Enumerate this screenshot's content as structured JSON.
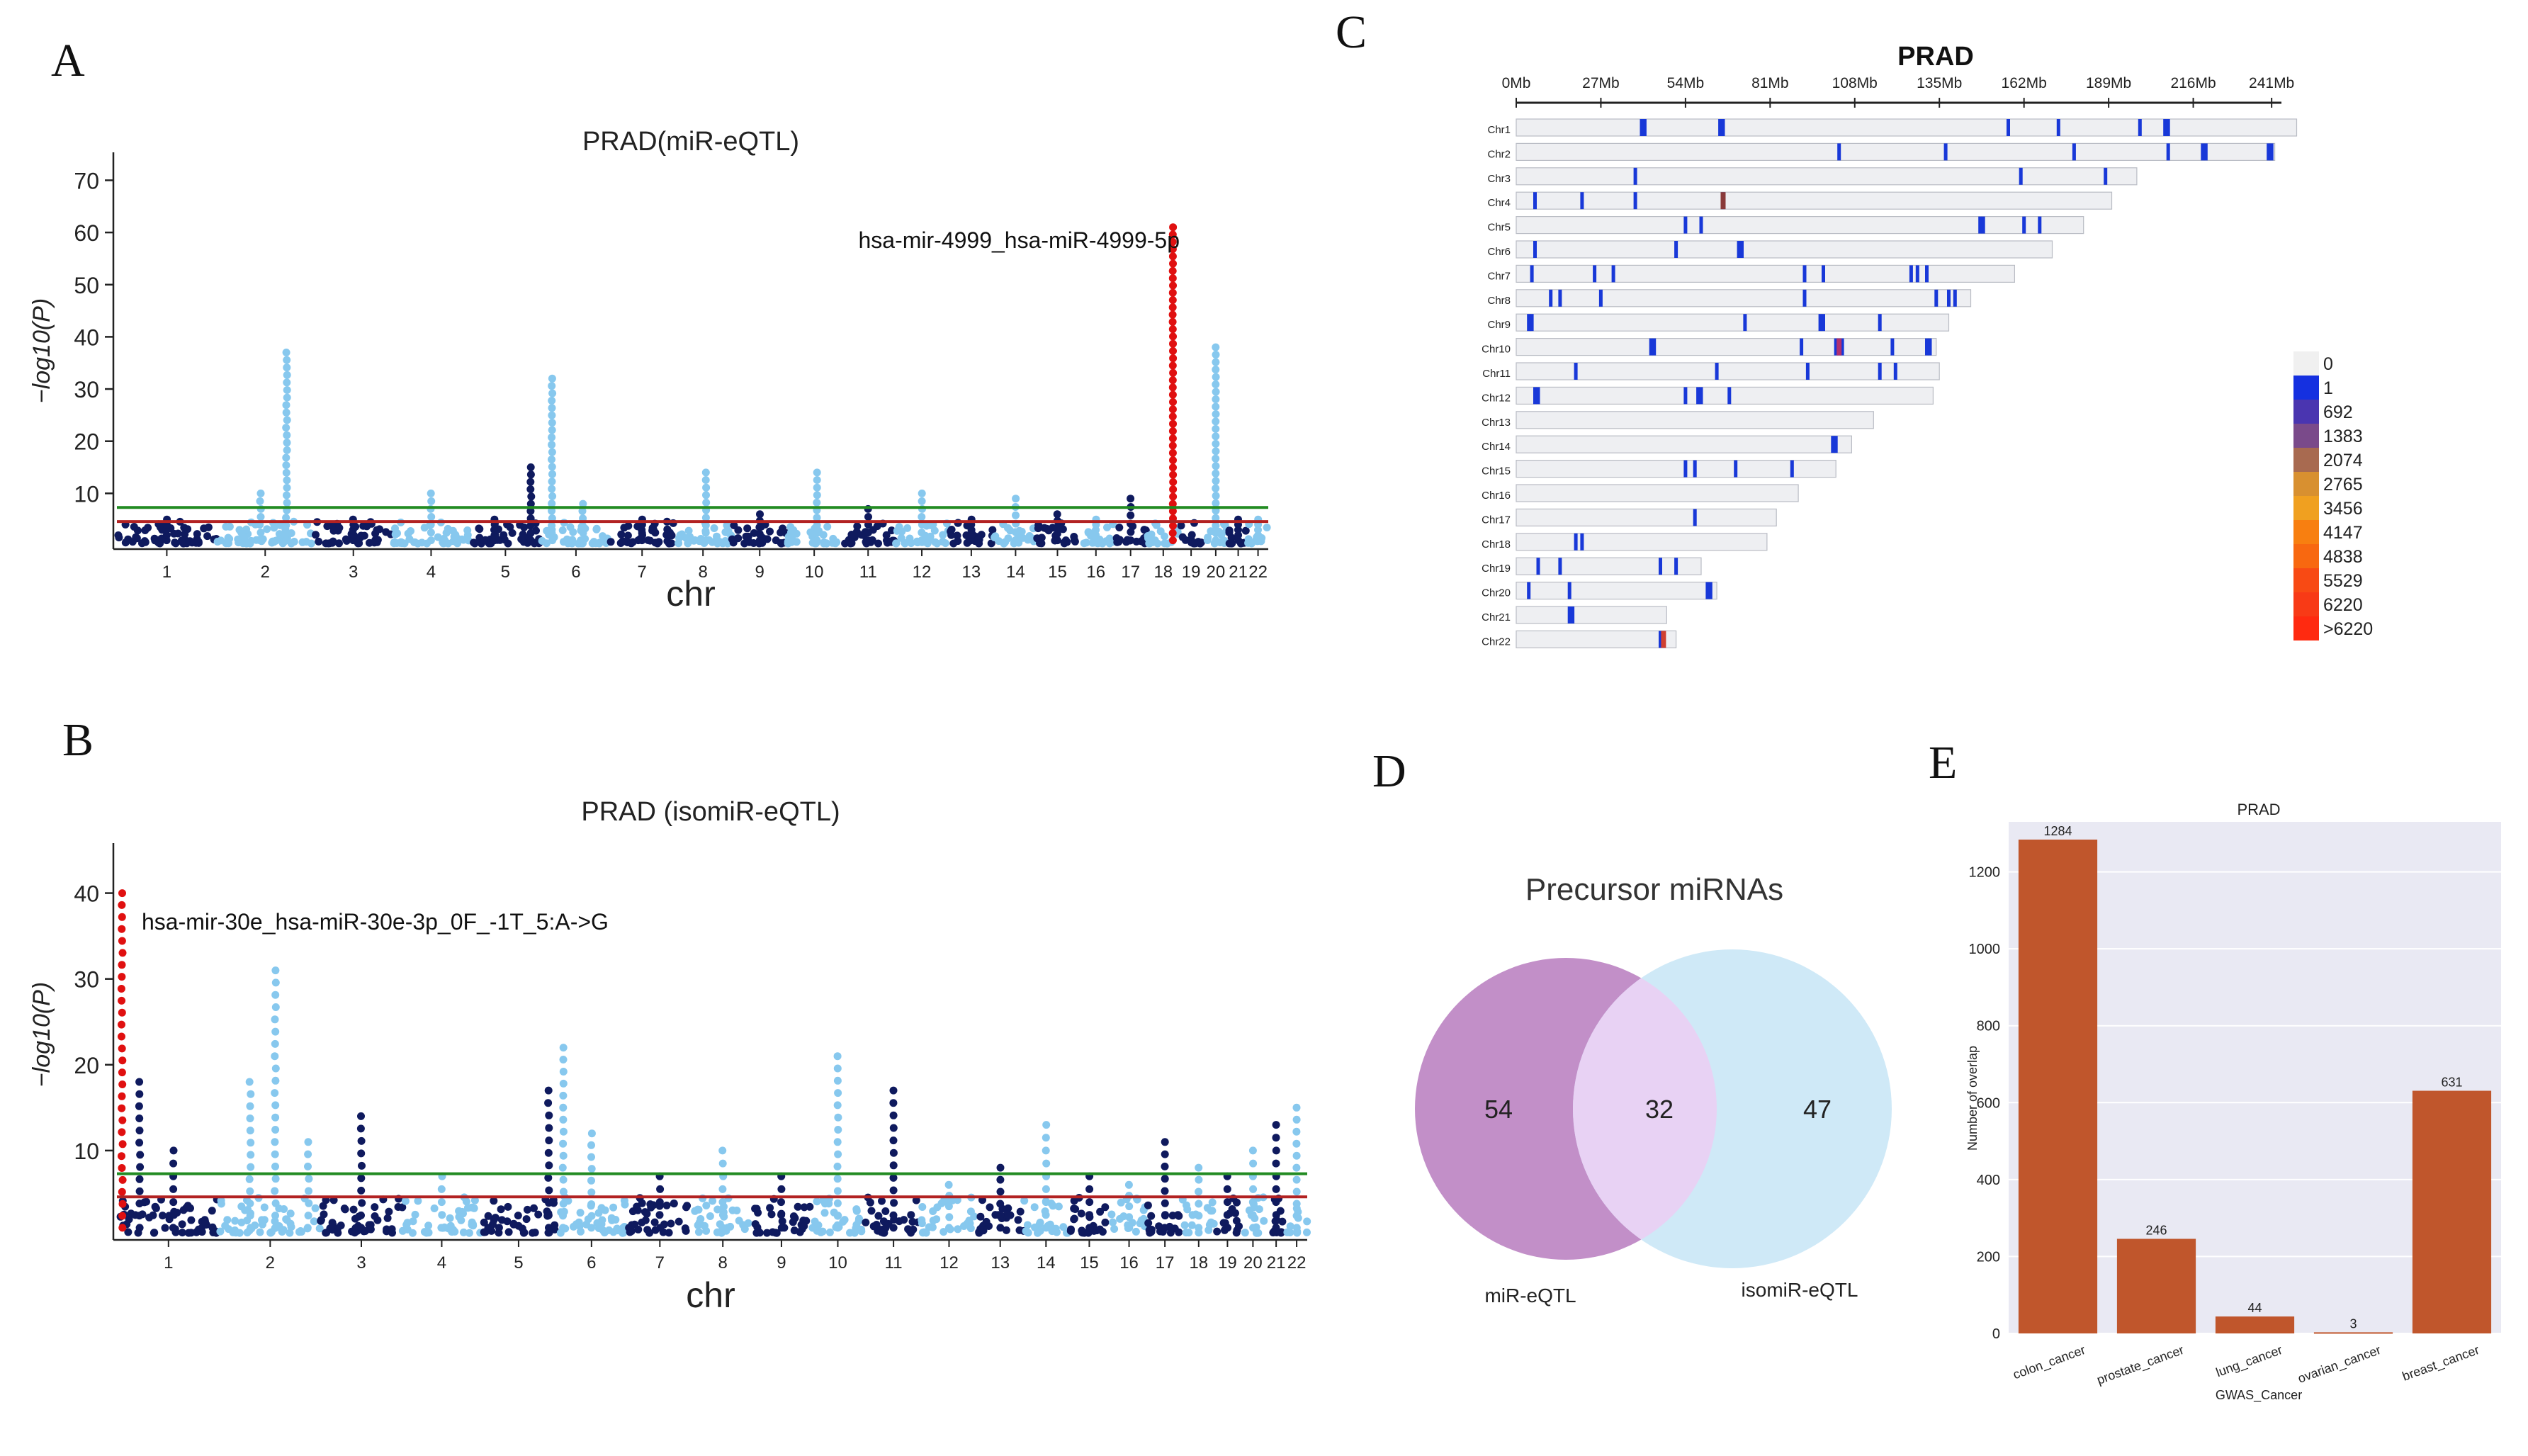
{
  "panels": [
    {
      "letter": "A"
    },
    {
      "letter": "B"
    },
    {
      "letter": "C"
    },
    {
      "letter": "D"
    },
    {
      "letter": "E"
    }
  ],
  "chart_data": [
    {
      "id": "A",
      "type": "scatter",
      "subtype": "manhattan",
      "title": "PRAD(miR-eQTL)",
      "xlabel": "chr",
      "ylabel": "−log10(P)",
      "ylim": [
        0,
        74
      ],
      "yticks": [
        10,
        20,
        30,
        40,
        50,
        60,
        70
      ],
      "chromosomes": [
        "1",
        "2",
        "3",
        "4",
        "5",
        "6",
        "7",
        "8",
        "9",
        "10",
        "11",
        "12",
        "13",
        "14",
        "15",
        "16",
        "17",
        "18",
        "19",
        "20",
        "21",
        "22"
      ],
      "thresholds": [
        {
          "name": "suggestive",
          "value": 4.6,
          "color": "#b22222"
        },
        {
          "name": "genome-wide",
          "value": 7.3,
          "color": "#228b22"
        }
      ],
      "colors": {
        "odd": "#0f1a5e",
        "even": "#87c8ee",
        "highlight": "#e01010"
      },
      "peaks": [
        {
          "chr": "1",
          "pos": 0.5,
          "max": 5
        },
        {
          "chr": "2",
          "pos": 0.45,
          "max": 10
        },
        {
          "chr": "2",
          "pos": 0.72,
          "max": 37
        },
        {
          "chr": "3",
          "pos": 0.5,
          "max": 5
        },
        {
          "chr": "4",
          "pos": 0.5,
          "max": 10
        },
        {
          "chr": "5",
          "pos": 0.35,
          "max": 5
        },
        {
          "chr": "5",
          "pos": 0.85,
          "max": 15
        },
        {
          "chr": "6",
          "pos": 0.15,
          "max": 32
        },
        {
          "chr": "6",
          "pos": 0.6,
          "max": 8
        },
        {
          "chr": "7",
          "pos": 0.5,
          "max": 5
        },
        {
          "chr": "8",
          "pos": 0.55,
          "max": 14
        },
        {
          "chr": "9",
          "pos": 0.5,
          "max": 6
        },
        {
          "chr": "10",
          "pos": 0.55,
          "max": 14
        },
        {
          "chr": "11",
          "pos": 0.5,
          "max": 7
        },
        {
          "chr": "12",
          "pos": 0.5,
          "max": 10
        },
        {
          "chr": "13",
          "pos": 0.5,
          "max": 5
        },
        {
          "chr": "14",
          "pos": 0.5,
          "max": 9
        },
        {
          "chr": "15",
          "pos": 0.5,
          "max": 6
        },
        {
          "chr": "16",
          "pos": 0.5,
          "max": 5
        },
        {
          "chr": "17",
          "pos": 0.5,
          "max": 9
        },
        {
          "chr": "18",
          "pos": 0.8,
          "max": 61,
          "highlight": true
        },
        {
          "chr": "20",
          "pos": 0.5,
          "max": 38
        },
        {
          "chr": "21",
          "pos": 0.5,
          "max": 5
        },
        {
          "chr": "22",
          "pos": 0.5,
          "max": 5
        }
      ],
      "top_hit": {
        "label": "hsa-mir-4999_hsa-miR-4999-5p",
        "chr": "18",
        "value": 61
      }
    },
    {
      "id": "B",
      "type": "scatter",
      "subtype": "manhattan",
      "title": "PRAD (isomiR-eQTL)",
      "xlabel": "chr",
      "ylabel": "−log10(P)",
      "ylim": [
        0,
        45
      ],
      "yticks": [
        10,
        20,
        30,
        40
      ],
      "chromosomes": [
        "1",
        "2",
        "3",
        "4",
        "5",
        "6",
        "7",
        "8",
        "9",
        "10",
        "11",
        "12",
        "13",
        "14",
        "15",
        "16",
        "17",
        "18",
        "19",
        "20",
        "21",
        "22"
      ],
      "thresholds": [
        {
          "name": "suggestive",
          "value": 4.6,
          "color": "#b22222"
        },
        {
          "name": "genome-wide",
          "value": 7.3,
          "color": "#228b22"
        }
      ],
      "colors": {
        "odd": "#0f1a5e",
        "even": "#87c8ee",
        "highlight": "#e01010"
      },
      "peaks": [
        {
          "chr": "1",
          "pos": 0.05,
          "max": 40,
          "highlight": true
        },
        {
          "chr": "1",
          "pos": 0.22,
          "max": 18
        },
        {
          "chr": "1",
          "pos": 0.55,
          "max": 10
        },
        {
          "chr": "2",
          "pos": 0.3,
          "max": 18
        },
        {
          "chr": "2",
          "pos": 0.55,
          "max": 31
        },
        {
          "chr": "2",
          "pos": 0.88,
          "max": 11
        },
        {
          "chr": "3",
          "pos": 0.5,
          "max": 14
        },
        {
          "chr": "4",
          "pos": 0.5,
          "max": 7
        },
        {
          "chr": "5",
          "pos": 0.9,
          "max": 17
        },
        {
          "chr": "6",
          "pos": 0.1,
          "max": 22
        },
        {
          "chr": "6",
          "pos": 0.5,
          "max": 12
        },
        {
          "chr": "7",
          "pos": 0.5,
          "max": 7
        },
        {
          "chr": "8",
          "pos": 0.5,
          "max": 10
        },
        {
          "chr": "9",
          "pos": 0.5,
          "max": 7
        },
        {
          "chr": "10",
          "pos": 0.5,
          "max": 21
        },
        {
          "chr": "11",
          "pos": 0.5,
          "max": 17
        },
        {
          "chr": "12",
          "pos": 0.5,
          "max": 6
        },
        {
          "chr": "13",
          "pos": 0.5,
          "max": 8
        },
        {
          "chr": "14",
          "pos": 0.5,
          "max": 13
        },
        {
          "chr": "15",
          "pos": 0.5,
          "max": 7
        },
        {
          "chr": "16",
          "pos": 0.5,
          "max": 6
        },
        {
          "chr": "17",
          "pos": 0.5,
          "max": 11
        },
        {
          "chr": "18",
          "pos": 0.5,
          "max": 8
        },
        {
          "chr": "19",
          "pos": 0.5,
          "max": 7
        },
        {
          "chr": "20",
          "pos": 0.5,
          "max": 10
        },
        {
          "chr": "21",
          "pos": 0.5,
          "max": 13
        },
        {
          "chr": "22",
          "pos": 0.5,
          "max": 15
        }
      ],
      "top_hit": {
        "label": "hsa-mir-30e_hsa-miR-30e-3p_0F_-1T_5:A->G",
        "chr": "1",
        "value": 40
      }
    },
    {
      "id": "C",
      "type": "heatmap",
      "subtype": "chromosome-density",
      "title": "PRAD",
      "axis_ticks": [
        "0Mb",
        "27Mb",
        "54Mb",
        "81Mb",
        "108Mb",
        "135Mb",
        "162Mb",
        "189Mb",
        "216Mb",
        "241Mb"
      ],
      "axis_range_mb": [
        0,
        243
      ],
      "chromosomes": [
        {
          "name": "Chr1",
          "length_mb": 249,
          "marks": [
            40,
            41,
            65,
            66,
            157,
            173,
            199,
            207,
            208
          ]
        },
        {
          "name": "Chr2",
          "length_mb": 242,
          "marks": [
            103,
            137,
            178,
            208,
            219,
            220,
            240,
            241
          ]
        },
        {
          "name": "Chr3",
          "length_mb": 198,
          "marks": [
            38,
            161,
            188
          ]
        },
        {
          "name": "Chr4",
          "length_mb": 190,
          "marks": [
            6,
            21,
            38,
            66
          ]
        },
        {
          "name": "Chr5",
          "length_mb": 181,
          "marks": [
            54,
            59,
            148,
            149,
            162,
            167
          ]
        },
        {
          "name": "Chr6",
          "length_mb": 171,
          "marks": [
            6,
            51,
            71,
            72
          ]
        },
        {
          "name": "Chr7",
          "length_mb": 159,
          "marks": [
            5,
            25,
            31,
            92,
            98,
            126,
            128,
            131
          ]
        },
        {
          "name": "Chr8",
          "length_mb": 145,
          "marks": [
            11,
            14,
            27,
            92,
            134,
            138,
            140
          ]
        },
        {
          "name": "Chr9",
          "length_mb": 138,
          "marks": [
            4,
            5,
            73,
            97,
            98,
            116
          ]
        },
        {
          "name": "Chr10",
          "length_mb": 134,
          "marks": [
            43,
            44,
            91,
            102,
            103,
            104,
            120,
            131,
            132
          ]
        },
        {
          "name": "Chr11",
          "length_mb": 135,
          "marks": [
            19,
            64,
            93,
            116,
            121
          ]
        },
        {
          "name": "Chr12",
          "length_mb": 133,
          "marks": [
            6,
            7,
            54,
            58,
            59,
            68
          ]
        },
        {
          "name": "Chr13",
          "length_mb": 114,
          "marks": []
        },
        {
          "name": "Chr14",
          "length_mb": 107,
          "marks": [
            101,
            102
          ]
        },
        {
          "name": "Chr15",
          "length_mb": 102,
          "marks": [
            54,
            57,
            70,
            88
          ]
        },
        {
          "name": "Chr16",
          "length_mb": 90,
          "marks": []
        },
        {
          "name": "Chr17",
          "length_mb": 83,
          "marks": [
            57
          ]
        },
        {
          "name": "Chr18",
          "length_mb": 80,
          "marks": [
            19,
            21
          ]
        },
        {
          "name": "Chr19",
          "length_mb": 59,
          "marks": [
            7,
            14,
            46,
            51
          ]
        },
        {
          "name": "Chr20",
          "length_mb": 64,
          "marks": [
            4,
            17,
            61,
            62
          ]
        },
        {
          "name": "Chr21",
          "length_mb": 48,
          "marks": [
            17,
            18
          ]
        },
        {
          "name": "Chr22",
          "length_mb": 51,
          "marks": [
            46,
            47
          ]
        }
      ],
      "hot_marks": [
        {
          "chr": "Chr4",
          "pos_mb": 66,
          "color": "#8a3a3a"
        },
        {
          "chr": "Chr10",
          "pos_mb": 103,
          "color": "#b03070"
        },
        {
          "chr": "Chr22",
          "pos_mb": 47,
          "color": "#d04030"
        }
      ],
      "legend": {
        "labels": [
          "0",
          "1",
          "692",
          "1383",
          "2074",
          "2765",
          "3456",
          "4147",
          "4838",
          "5529",
          "6220",
          ">6220"
        ],
        "colors": [
          "#f0f0f0",
          "#1530e0",
          "#4a35b0",
          "#7a4a8a",
          "#a86a50",
          "#d89030",
          "#f0a020",
          "#f87f10",
          "#f86810",
          "#f84a14",
          "#f83a16",
          "#ff2a10"
        ]
      }
    },
    {
      "id": "D",
      "type": "venn",
      "title": "Precursor miRNAs",
      "sets": [
        {
          "name": "miR-eQTL",
          "only": 54,
          "color": "#c28fc8"
        },
        {
          "name": "isomiR-eQTL",
          "only": 47,
          "color": "#cfe9f7"
        }
      ],
      "intersection": 32,
      "intersection_color": "#e8d2f4"
    },
    {
      "id": "E",
      "type": "bar",
      "title": "PRAD",
      "xlabel": "GWAS_Cancer",
      "ylabel": "Number of overlap",
      "categories": [
        "colon_cancer",
        "prostate_cancer",
        "lung_cancer",
        "ovarian_cancer",
        "breast_cancer"
      ],
      "values": [
        1284,
        246,
        44,
        3,
        631
      ],
      "ylim": [
        0,
        1330
      ],
      "yticks": [
        0,
        200,
        400,
        600,
        800,
        1000,
        1200
      ],
      "bar_color": "#c0562c",
      "background": "#e9e9f3"
    }
  ]
}
